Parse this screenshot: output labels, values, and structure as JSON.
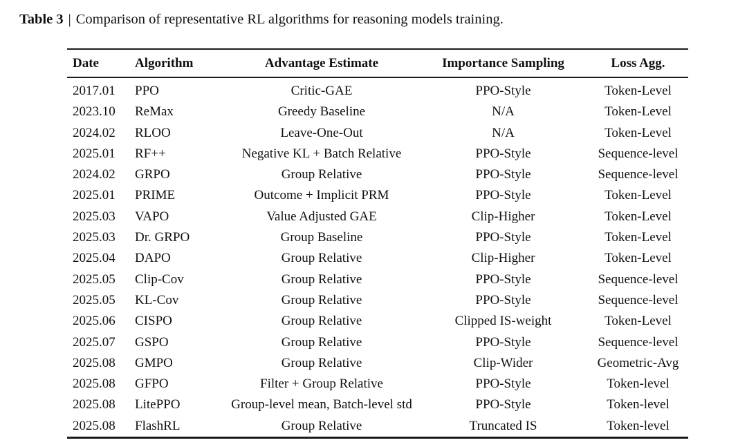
{
  "caption": {
    "label": "Table 3",
    "separator": "|",
    "text": "Comparison of representative RL algorithms for reasoning models training."
  },
  "table": {
    "columns": [
      {
        "label": "Date",
        "align": "left"
      },
      {
        "label": "Algorithm",
        "align": "left"
      },
      {
        "label": "Advantage Estimate",
        "align": "center"
      },
      {
        "label": "Importance Sampling",
        "align": "center"
      },
      {
        "label": "Loss Agg.",
        "align": "center"
      }
    ],
    "rows": [
      [
        "2017.01",
        "PPO",
        "Critic-GAE",
        "PPO-Style",
        "Token-Level"
      ],
      [
        "2023.10",
        "ReMax",
        "Greedy Baseline",
        "N/A",
        "Token-Level"
      ],
      [
        "2024.02",
        "RLOO",
        "Leave-One-Out",
        "N/A",
        "Token-Level"
      ],
      [
        "2025.01",
        "RF++",
        "Negative KL + Batch Relative",
        "PPO-Style",
        "Sequence-level"
      ],
      [
        "2024.02",
        "GRPO",
        "Group Relative",
        "PPO-Style",
        "Sequence-level"
      ],
      [
        "2025.01",
        "PRIME",
        "Outcome + Implicit PRM",
        "PPO-Style",
        "Token-Level"
      ],
      [
        "2025.03",
        "VAPO",
        "Value Adjusted GAE",
        "Clip-Higher",
        "Token-Level"
      ],
      [
        "2025.03",
        "Dr. GRPO",
        "Group Baseline",
        "PPO-Style",
        "Token-Level"
      ],
      [
        "2025.04",
        "DAPO",
        "Group Relative",
        "Clip-Higher",
        "Token-Level"
      ],
      [
        "2025.05",
        "Clip-Cov",
        "Group Relative",
        "PPO-Style",
        "Sequence-level"
      ],
      [
        "2025.05",
        "KL-Cov",
        "Group Relative",
        "PPO-Style",
        "Sequence-level"
      ],
      [
        "2025.06",
        "CISPO",
        "Group Relative",
        "Clipped IS-weight",
        "Token-Level"
      ],
      [
        "2025.07",
        "GSPO",
        "Group Relative",
        "PPO-Style",
        "Sequence-level"
      ],
      [
        "2025.08",
        "GMPO",
        "Group Relative",
        "Clip-Wider",
        "Geometric-Avg"
      ],
      [
        "2025.08",
        "GFPO",
        "Filter + Group Relative",
        "PPO-Style",
        "Token-level"
      ],
      [
        "2025.08",
        "LitePPO",
        "Group-level mean, Batch-level std",
        "PPO-Style",
        "Token-level"
      ],
      [
        "2025.08",
        "FlashRL",
        "Group Relative",
        "Truncated IS",
        "Token-level"
      ]
    ]
  }
}
